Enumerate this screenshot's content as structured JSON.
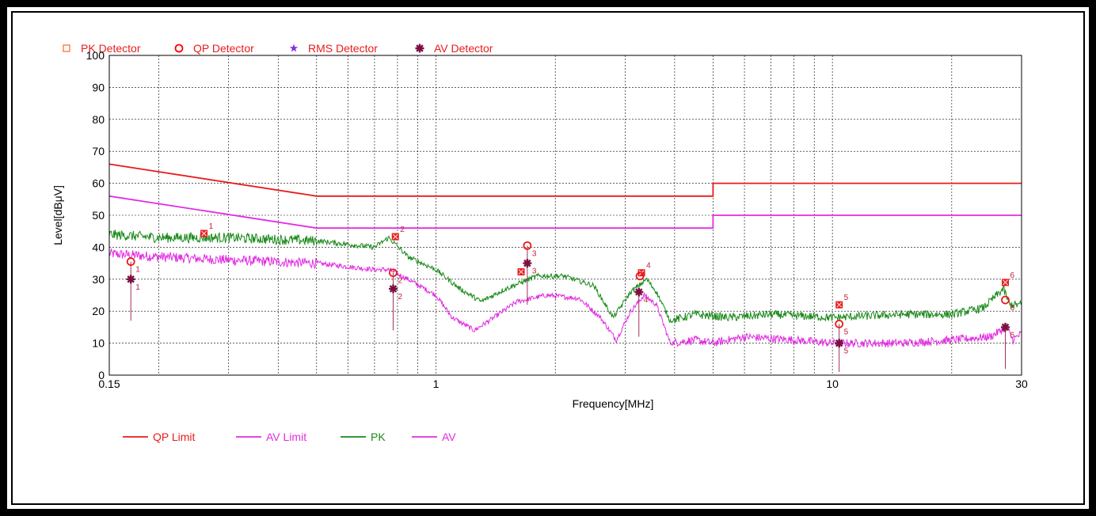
{
  "chart_data": {
    "type": "line",
    "title": "",
    "xlabel": "Frequency[MHz]",
    "ylabel": "Level[dBμV]",
    "x_scale": "log",
    "xlim": [
      0.15,
      30
    ],
    "ylim": [
      0,
      100
    ],
    "grid": true,
    "x_tick_labels": [
      {
        "value": 0.15,
        "label": "0.15"
      },
      {
        "value": 1,
        "label": "1"
      },
      {
        "value": 10,
        "label": "10"
      },
      {
        "value": 30,
        "label": "30"
      }
    ],
    "y_ticks": [
      0,
      10,
      20,
      30,
      40,
      50,
      60,
      70,
      80,
      90,
      100
    ],
    "detector_legend": [
      {
        "label": "PK Detector",
        "symbol": "square",
        "color": "#ff8c5a"
      },
      {
        "label": "QP Detector",
        "symbol": "circle",
        "color": "#ff0000"
      },
      {
        "label": "RMS Detector",
        "symbol": "star",
        "color": "#8a2be2"
      },
      {
        "label": "AV Detector",
        "symbol": "asterisk",
        "color": "#7b1040"
      }
    ],
    "line_legend": [
      {
        "label": "QP Limit",
        "color": "#e81c1c"
      },
      {
        "label": "AV Limit",
        "color": "#e22de2"
      },
      {
        "label": "PK",
        "color": "#1a8a1a"
      },
      {
        "label": "AV",
        "color": "#e22de2"
      }
    ],
    "series": [
      {
        "name": "QP Limit",
        "color": "#e81c1c",
        "style": "limit",
        "points": [
          [
            0.15,
            66
          ],
          [
            0.5,
            56
          ],
          [
            5,
            56
          ],
          [
            5,
            60
          ],
          [
            30,
            60
          ]
        ]
      },
      {
        "name": "AV Limit",
        "color": "#e22de2",
        "style": "limit",
        "points": [
          [
            0.15,
            56
          ],
          [
            0.5,
            46
          ],
          [
            5,
            46
          ],
          [
            5,
            50
          ],
          [
            30,
            50
          ]
        ]
      },
      {
        "name": "PK",
        "color": "#1a8a1a",
        "style": "noisy",
        "points": [
          [
            0.15,
            44
          ],
          [
            0.2,
            43
          ],
          [
            0.3,
            43
          ],
          [
            0.5,
            42
          ],
          [
            0.7,
            40
          ],
          [
            0.76,
            43
          ],
          [
            0.85,
            37
          ],
          [
            1.0,
            33
          ],
          [
            1.15,
            27
          ],
          [
            1.3,
            23
          ],
          [
            1.5,
            27
          ],
          [
            1.8,
            31
          ],
          [
            2.1,
            31
          ],
          [
            2.5,
            28
          ],
          [
            2.8,
            18
          ],
          [
            3.1,
            26
          ],
          [
            3.4,
            30
          ],
          [
            3.6,
            26
          ],
          [
            3.9,
            17
          ],
          [
            4.5,
            19
          ],
          [
            5.5,
            18
          ],
          [
            7,
            19
          ],
          [
            10,
            18
          ],
          [
            15,
            19
          ],
          [
            20,
            19
          ],
          [
            24,
            21
          ],
          [
            27,
            27
          ],
          [
            28,
            22
          ],
          [
            30,
            22
          ]
        ]
      },
      {
        "name": "AV",
        "color": "#e22de2",
        "style": "noisy",
        "points": [
          [
            0.15,
            38
          ],
          [
            0.2,
            37
          ],
          [
            0.3,
            36
          ],
          [
            0.5,
            35
          ],
          [
            0.7,
            33
          ],
          [
            0.76,
            33
          ],
          [
            0.85,
            30
          ],
          [
            1.0,
            25
          ],
          [
            1.1,
            18
          ],
          [
            1.25,
            14
          ],
          [
            1.4,
            18
          ],
          [
            1.6,
            23
          ],
          [
            1.9,
            25
          ],
          [
            2.3,
            24
          ],
          [
            2.6,
            18
          ],
          [
            2.85,
            11
          ],
          [
            3.1,
            20
          ],
          [
            3.35,
            25
          ],
          [
            3.6,
            22
          ],
          [
            3.9,
            10
          ],
          [
            4.5,
            11
          ],
          [
            5,
            10
          ],
          [
            6,
            12
          ],
          [
            8,
            11
          ],
          [
            10,
            10
          ],
          [
            15,
            10
          ],
          [
            20,
            11
          ],
          [
            25,
            12
          ],
          [
            27.5,
            15
          ],
          [
            28.5,
            11
          ],
          [
            30,
            13
          ]
        ]
      }
    ],
    "markers": [
      {
        "detector": "QP Detector",
        "index": "1",
        "x": 0.17,
        "y": 35.5,
        "stem_to": 17
      },
      {
        "detector": "AV Detector",
        "index": "1",
        "x": 0.17,
        "y": 30
      },
      {
        "detector": "PK Detector",
        "index": "1",
        "x": 0.26,
        "y": 44.3
      },
      {
        "detector": "PK Detector",
        "index": "2",
        "x": 0.79,
        "y": 43.3
      },
      {
        "detector": "QP Detector",
        "index": "2",
        "x": 0.78,
        "y": 32,
        "stem_to": 14
      },
      {
        "detector": "AV Detector",
        "index": "2",
        "x": 0.78,
        "y": 27
      },
      {
        "detector": "PK Detector",
        "index": "",
        "x": 1.64,
        "y": 32.3
      },
      {
        "detector": "QP Detector",
        "index": "3",
        "x": 1.7,
        "y": 40.5,
        "stem_to": 22
      },
      {
        "detector": "AV Detector",
        "index": "3",
        "x": 1.7,
        "y": 35
      },
      {
        "detector": "PK Detector",
        "index": "4",
        "x": 3.3,
        "y": 32
      },
      {
        "detector": "QP Detector",
        "index": "",
        "x": 3.27,
        "y": 31
      },
      {
        "detector": "AV Detector",
        "index": "4",
        "x": 3.25,
        "y": 26,
        "stem_to": 12
      },
      {
        "detector": "PK Detector",
        "index": "5",
        "x": 10.4,
        "y": 22
      },
      {
        "detector": "QP Detector",
        "index": "5",
        "x": 10.4,
        "y": 16,
        "stem_to": 1
      },
      {
        "detector": "AV Detector",
        "index": "5",
        "x": 10.4,
        "y": 10
      },
      {
        "detector": "PK Detector",
        "index": "6",
        "x": 27.3,
        "y": 29
      },
      {
        "detector": "QP Detector",
        "index": "6",
        "x": 27.3,
        "y": 23.5
      },
      {
        "detector": "AV Detector",
        "index": "6",
        "x": 27.3,
        "y": 15,
        "stem_to": 2
      }
    ]
  }
}
